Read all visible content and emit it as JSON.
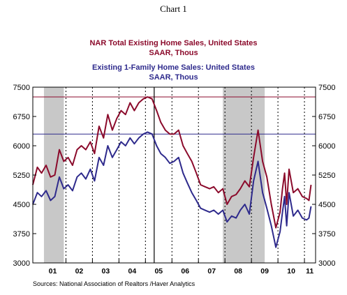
{
  "chart_data": {
    "type": "line",
    "title": "Chart 1",
    "colors": {
      "series1": "#8B0A2B",
      "series2": "#2E2A8C",
      "recession": "#C8C8C8"
    },
    "xlim": [
      2000.75,
      2011.42
    ],
    "ylim": [
      3000,
      7500
    ],
    "y_ticks": [
      3000,
      3750,
      4500,
      5250,
      6000,
      6750,
      7500
    ],
    "y_tick_labels": [
      "3000",
      "3750",
      "4500",
      "5250",
      "6000",
      "6750",
      "7500"
    ],
    "x_tick_labels": [
      "01",
      "02",
      "03",
      "04",
      "05",
      "06",
      "07",
      "08",
      "09",
      "10",
      "11"
    ],
    "x_tick_centers": [
      2001.5,
      2002.5,
      2003.5,
      2004.5,
      2005.5,
      2006.5,
      2007.5,
      2008.5,
      2009.5,
      2010.5,
      2011.2
    ],
    "year_dividers": [
      2002,
      2003,
      2004,
      2005,
      2006,
      2007,
      2008,
      2009,
      2010,
      2011
    ],
    "recessions": [
      [
        2001.17,
        2001.92
      ],
      [
        2007.92,
        2009.5
      ]
    ],
    "reference_lines": [
      {
        "series": 0,
        "value": 7250
      },
      {
        "series": 1,
        "value": 6300
      }
    ],
    "vertical_marker": 2005.33,
    "series": [
      {
        "name": "NAR Total Existing Home Sales, United States",
        "subtitle": "SAAR, Thous",
        "x": [
          2000.75,
          2000.92,
          2001.08,
          2001.25,
          2001.42,
          2001.58,
          2001.75,
          2001.92,
          2002.08,
          2002.25,
          2002.42,
          2002.58,
          2002.75,
          2002.92,
          2003.08,
          2003.25,
          2003.42,
          2003.58,
          2003.75,
          2003.92,
          2004.08,
          2004.25,
          2004.42,
          2004.58,
          2004.75,
          2004.92,
          2005.08,
          2005.25,
          2005.42,
          2005.58,
          2005.75,
          2005.92,
          2006.08,
          2006.25,
          2006.42,
          2006.58,
          2006.75,
          2006.92,
          2007.08,
          2007.25,
          2007.42,
          2007.58,
          2007.75,
          2007.92,
          2008.08,
          2008.25,
          2008.42,
          2008.58,
          2008.75,
          2008.92,
          2009.08,
          2009.25,
          2009.42,
          2009.58,
          2009.75,
          2009.92,
          2010.08,
          2010.17,
          2010.25,
          2010.33,
          2010.42,
          2010.58,
          2010.75,
          2010.92,
          2011.08,
          2011.17,
          2011.25
        ],
        "values": [
          5000,
          5450,
          5300,
          5500,
          5200,
          5250,
          5900,
          5600,
          5700,
          5500,
          5900,
          6000,
          5900,
          6100,
          5800,
          6500,
          6200,
          6800,
          6400,
          6700,
          6900,
          6800,
          7100,
          6900,
          7100,
          7200,
          7250,
          7200,
          6900,
          6600,
          6400,
          6300,
          6300,
          6400,
          6000,
          5800,
          5600,
          5300,
          5000,
          4950,
          4900,
          4950,
          4800,
          4900,
          4500,
          4700,
          4750,
          4900,
          5100,
          4950,
          5700,
          6400,
          5600,
          5200,
          4500,
          3900,
          4300,
          4900,
          5300,
          4500,
          5400,
          4800,
          4900,
          4700,
          4650,
          4600,
          5000
        ]
      },
      {
        "name": "Existing 1-Family Home Sales: United States",
        "subtitle": "SAAR, Thous",
        "x": [
          2000.75,
          2000.92,
          2001.08,
          2001.25,
          2001.42,
          2001.58,
          2001.75,
          2001.92,
          2002.08,
          2002.25,
          2002.42,
          2002.58,
          2002.75,
          2002.92,
          2003.08,
          2003.25,
          2003.42,
          2003.58,
          2003.75,
          2003.92,
          2004.08,
          2004.25,
          2004.42,
          2004.58,
          2004.75,
          2004.92,
          2005.08,
          2005.25,
          2005.42,
          2005.58,
          2005.75,
          2005.92,
          2006.08,
          2006.25,
          2006.42,
          2006.58,
          2006.75,
          2006.92,
          2007.08,
          2007.25,
          2007.42,
          2007.58,
          2007.75,
          2007.92,
          2008.08,
          2008.25,
          2008.42,
          2008.58,
          2008.75,
          2008.92,
          2009.08,
          2009.25,
          2009.42,
          2009.58,
          2009.75,
          2009.92,
          2010.08,
          2010.17,
          2010.25,
          2010.33,
          2010.42,
          2010.58,
          2010.75,
          2010.92,
          2011.08,
          2011.17,
          2011.25
        ],
        "values": [
          4500,
          4800,
          4700,
          4850,
          4600,
          4700,
          5200,
          4900,
          5000,
          4850,
          5200,
          5300,
          5150,
          5400,
          5100,
          5700,
          5500,
          6000,
          5700,
          5900,
          6100,
          6000,
          6200,
          6050,
          6200,
          6300,
          6350,
          6300,
          6000,
          5800,
          5700,
          5550,
          5600,
          5700,
          5300,
          5050,
          4800,
          4600,
          4400,
          4350,
          4300,
          4350,
          4250,
          4350,
          4050,
          4200,
          4150,
          4350,
          4500,
          4250,
          5100,
          5600,
          4800,
          4400,
          3950,
          3400,
          3800,
          4300,
          4700,
          3950,
          4800,
          4200,
          4350,
          4150,
          4100,
          4150,
          4450
        ]
      }
    ],
    "source": "Sources:  National Association of Realtors /Haver Analytics"
  }
}
